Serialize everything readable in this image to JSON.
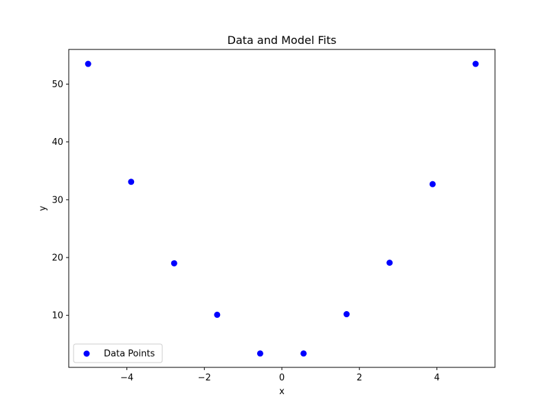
{
  "chart_data": {
    "type": "scatter",
    "title": "Data and Model Fits",
    "xlabel": "x",
    "ylabel": "y",
    "xlim": [
      -5.5,
      5.5
    ],
    "ylim": [
      1.0,
      56.0
    ],
    "xticks": [
      -4,
      -2,
      0,
      2,
      4
    ],
    "xtick_labels": [
      "−4",
      "−2",
      "0",
      "2",
      "4"
    ],
    "yticks": [
      10,
      20,
      30,
      40,
      50
    ],
    "ytick_labels": [
      "10",
      "20",
      "30",
      "40",
      "50"
    ],
    "grid": false,
    "legend": {
      "position": "lower-left"
    },
    "series": [
      {
        "name": "Data Points",
        "color": "#0000ff",
        "marker": "circle",
        "x": [
          -5.0,
          -3.89,
          -2.78,
          -1.67,
          -0.56,
          0.56,
          1.67,
          2.78,
          3.89,
          5.0
        ],
        "y": [
          53.5,
          33.1,
          19.0,
          10.1,
          3.4,
          3.4,
          10.2,
          19.1,
          32.7,
          53.5
        ]
      }
    ]
  }
}
